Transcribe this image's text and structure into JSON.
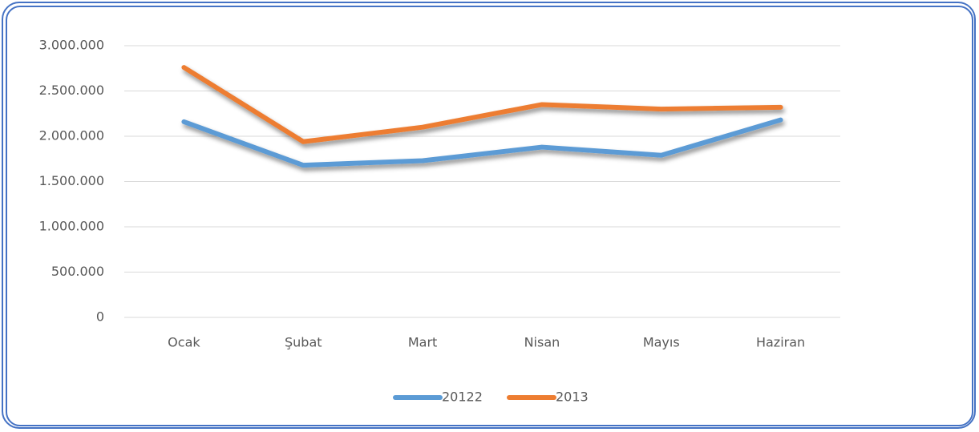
{
  "chart_data": {
    "type": "line",
    "categories": [
      "Ocak",
      "Şubat",
      "Mart",
      "Nisan",
      "Mayıs",
      "Haziran"
    ],
    "series": [
      {
        "name": "20122",
        "color": "#5b9bd5",
        "values": [
          2160000,
          1680000,
          1730000,
          1880000,
          1790000,
          2180000
        ]
      },
      {
        "name": "2013",
        "color": "#ed7d31",
        "values": [
          2760000,
          1940000,
          2100000,
          2350000,
          2300000,
          2320000
        ]
      }
    ],
    "ylim": [
      0,
      3000000
    ],
    "yticks": [
      0,
      {
        "value": 500000,
        "label": "500.000"
      },
      {
        "value": 1000000,
        "label": "1.000.000"
      },
      {
        "value": 1500000,
        "label": "1.500.000"
      },
      {
        "value": 2000000,
        "label": "2.000.000"
      },
      {
        "value": 2500000,
        "label": "2.500.000"
      },
      {
        "value": 3000000,
        "label": "3.000.000"
      }
    ],
    "grid": true,
    "legend": "bottom"
  }
}
